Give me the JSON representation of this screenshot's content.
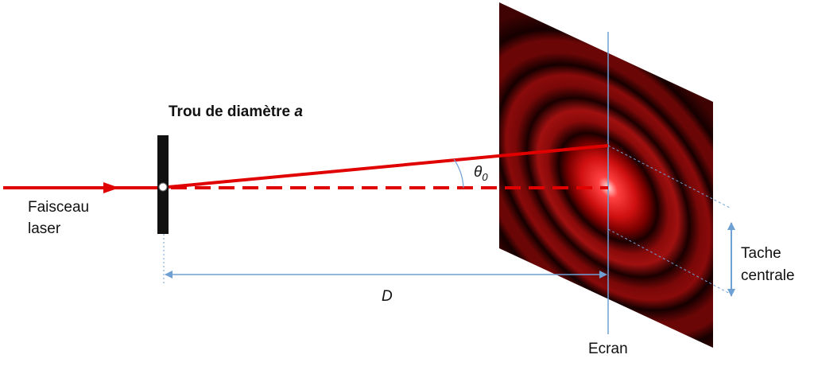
{
  "labels": {
    "hole": {
      "text": "Trou de diamètre",
      "variable": "a"
    },
    "angle": {
      "symbol": "θ",
      "subscript": "0"
    },
    "beam": [
      "Faisceau",
      "laser"
    ],
    "distance": "D",
    "screen": "Ecran",
    "spot": [
      "Tache",
      "centrale"
    ]
  }
}
